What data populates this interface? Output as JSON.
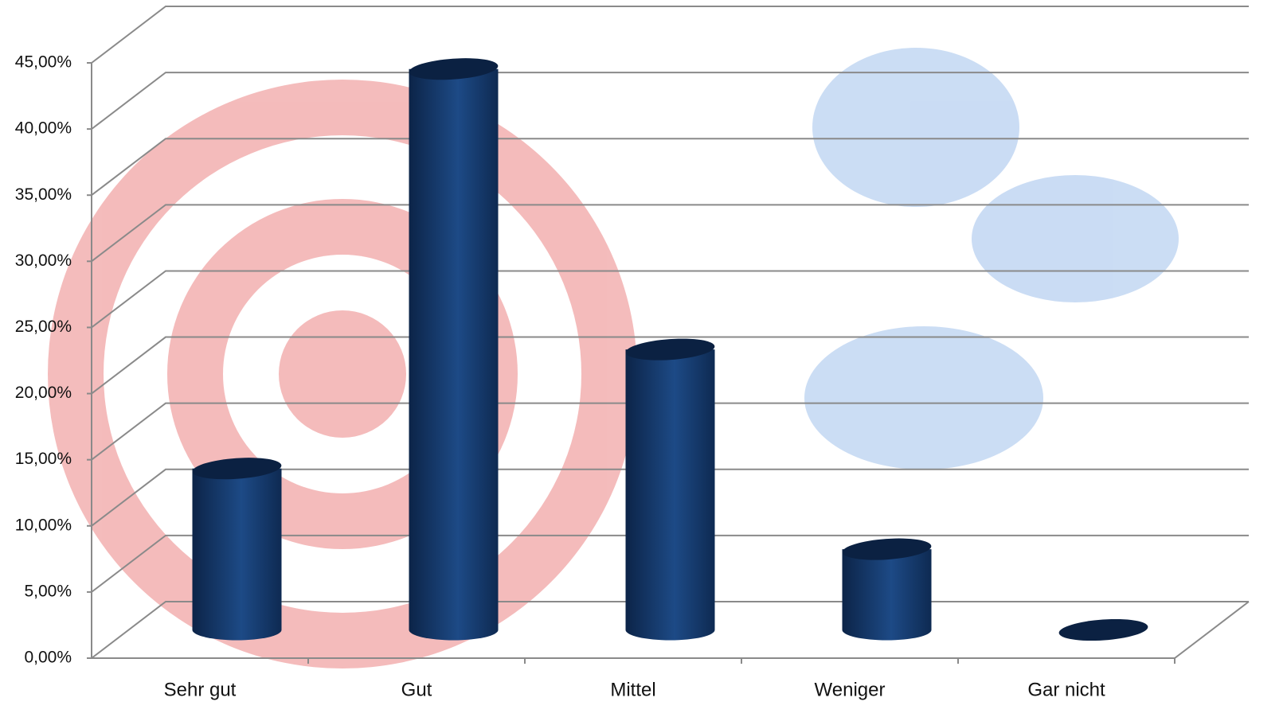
{
  "chart_data": {
    "type": "bar3d",
    "categories": [
      "Sehr gut",
      "Gut",
      "Mittel",
      "Weniger",
      "Gar nicht"
    ],
    "values": [
      12.2,
      42.4,
      21.2,
      6.1,
      0
    ],
    "color": "#1a3e73",
    "ylim": [
      0,
      45
    ],
    "yticks": [
      {
        "value": 0,
        "label": "0,00%"
      },
      {
        "value": 5,
        "label": "5,00%"
      },
      {
        "value": 10,
        "label": "10,00%"
      },
      {
        "value": 15,
        "label": "15,00%"
      },
      {
        "value": 20,
        "label": "20,00%"
      },
      {
        "value": 25,
        "label": "25,00%"
      },
      {
        "value": 30,
        "label": "30,00%"
      },
      {
        "value": 35,
        "label": "35,00%"
      },
      {
        "value": 40,
        "label": "40,00%"
      },
      {
        "value": 45,
        "label": "45,00%"
      }
    ],
    "grid": true
  }
}
